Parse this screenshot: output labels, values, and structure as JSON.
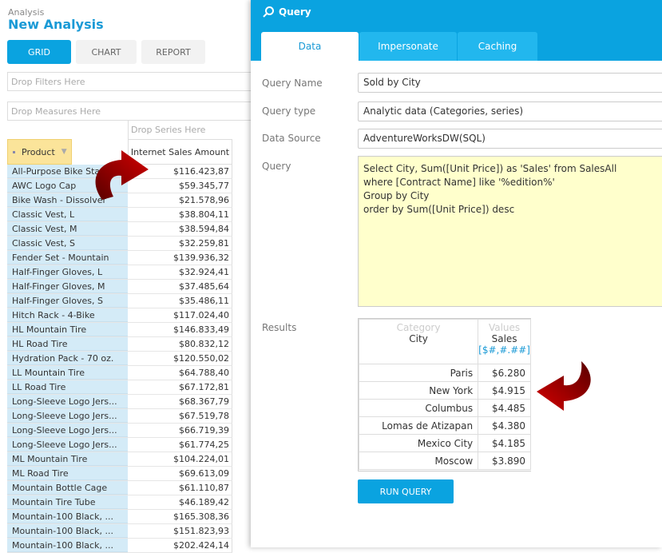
{
  "header": {
    "breadcrumb": "Analysis",
    "title": "New Analysis"
  },
  "views": [
    {
      "label": "GRID",
      "active": true
    },
    {
      "label": "CHART",
      "active": false
    },
    {
      "label": "REPORT",
      "active": false
    }
  ],
  "drop": {
    "filters": "Drop Filters Here",
    "measures": "Drop Measures Here",
    "series": "Drop Series Here"
  },
  "grid": {
    "row_header": "Product",
    "measure": "Internet Sales Amount",
    "rows": [
      [
        "All-Purpose Bike Stand",
        "$116.423,87"
      ],
      [
        "AWC Logo Cap",
        "$59.345,77"
      ],
      [
        "Bike Wash - Dissolver",
        "$21.578,96"
      ],
      [
        "Classic Vest, L",
        "$38.804,11"
      ],
      [
        "Classic Vest, M",
        "$38.594,84"
      ],
      [
        "Classic Vest, S",
        "$32.259,81"
      ],
      [
        "Fender Set - Mountain",
        "$139.936,32"
      ],
      [
        "Half-Finger Gloves, L",
        "$32.924,41"
      ],
      [
        "Half-Finger Gloves, M",
        "$37.485,64"
      ],
      [
        "Half-Finger Gloves, S",
        "$35.486,11"
      ],
      [
        "Hitch Rack - 4-Bike",
        "$117.024,40"
      ],
      [
        "HL Mountain Tire",
        "$146.833,49"
      ],
      [
        "HL Road Tire",
        "$80.832,12"
      ],
      [
        "Hydration Pack - 70 oz.",
        "$120.550,02"
      ],
      [
        "LL Mountain Tire",
        "$64.788,40"
      ],
      [
        "LL Road Tire",
        "$67.172,81"
      ],
      [
        "Long-Sleeve Logo Jers...",
        "$68.367,79"
      ],
      [
        "Long-Sleeve Logo Jers...",
        "$67.519,78"
      ],
      [
        "Long-Sleeve Logo Jers...",
        "$66.719,39"
      ],
      [
        "Long-Sleeve Logo Jers...",
        "$61.774,25"
      ],
      [
        "ML Mountain Tire",
        "$104.224,01"
      ],
      [
        "ML Road Tire",
        "$69.613,09"
      ],
      [
        "Mountain Bottle Cage",
        "$61.110,87"
      ],
      [
        "Mountain Tire Tube",
        "$46.189,42"
      ],
      [
        "Mountain-100 Black, ...",
        "$165.308,36"
      ],
      [
        "Mountain-100 Black, ...",
        "$151.823,93"
      ],
      [
        "Mountain-100 Black, ...",
        "$202.424,14"
      ]
    ]
  },
  "panel": {
    "title": "Query",
    "tabs": [
      "Data",
      "Impersonate",
      "Caching"
    ],
    "fields": {
      "name_label": "Query Name",
      "name": "Sold by City",
      "type_label": "Query type",
      "type": "Analytic data (Categories, series)",
      "source_label": "Data Source",
      "source": "AdventureWorksDW(SQL)",
      "query_label": "Query",
      "query": "Select City, Sum([Unit Price]) as 'Sales' from SalesAll\nwhere [Contract Name] like '%edition%'\nGroup by City\norder by Sum([Unit Price]) desc"
    },
    "results": {
      "label": "Results",
      "cat_caption": "Category",
      "cat": "City",
      "val_caption": "Values",
      "val": "Sales",
      "format": "[$#,#.##]",
      "rows": [
        [
          "Paris",
          "$6.280"
        ],
        [
          "New York",
          "$4.915"
        ],
        [
          "Columbus",
          "$4.485"
        ],
        [
          "Lomas de Atizapan",
          "$4.380"
        ],
        [
          "Mexico City",
          "$4.185"
        ],
        [
          "Moscow",
          "$3.890"
        ]
      ]
    },
    "run": "RUN QUERY"
  },
  "colors": {
    "accent": "#0aa3e0",
    "arrow": "#b00000"
  }
}
